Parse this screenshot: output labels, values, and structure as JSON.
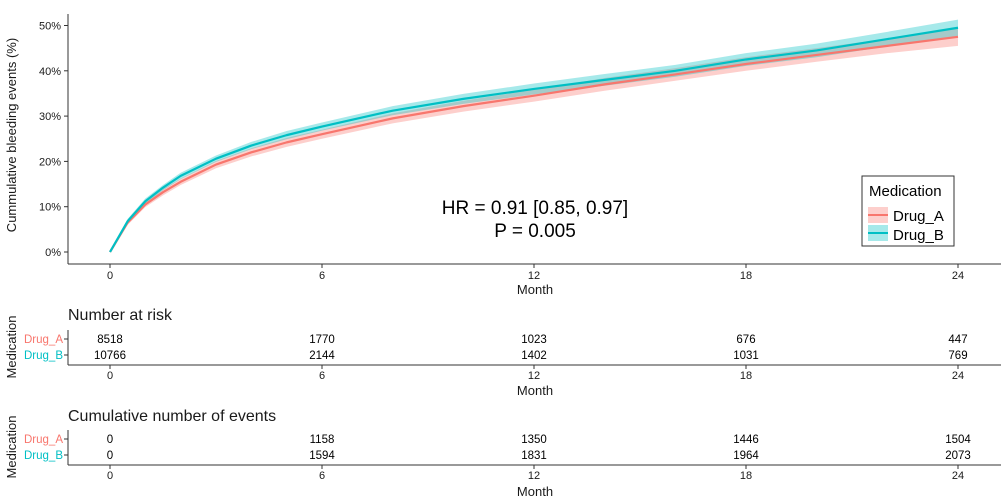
{
  "chart_data": [
    {
      "type": "line",
      "subtype": "cumulative-incidence",
      "ylabel": "Cummulative bleeding events (%)",
      "xlabel": "Month",
      "xlim": [
        0,
        24
      ],
      "ylim": [
        0,
        50
      ],
      "x_ticks": [
        0,
        6,
        12,
        18,
        24
      ],
      "y_ticks": [
        0,
        10,
        20,
        30,
        40,
        50
      ],
      "y_tick_labels": [
        "0%",
        "10%",
        "20%",
        "30%",
        "40%",
        "50%"
      ],
      "grid": false,
      "legend": {
        "title": "Medication",
        "position": "bottom-right",
        "entries": [
          "Drug_A",
          "Drug_B"
        ]
      },
      "annotation": {
        "line1": "HR = 0.91 [0.85, 0.97]",
        "line2": "P = 0.005"
      },
      "series": [
        {
          "name": "Drug_A",
          "color": "#F8766D",
          "x": [
            0,
            0.5,
            1,
            1.5,
            2,
            3,
            4,
            5,
            6,
            8,
            10,
            12,
            14,
            16,
            18,
            20,
            22,
            24
          ],
          "y": [
            0,
            6.5,
            10.5,
            13.2,
            15.5,
            19.3,
            22.0,
            24.2,
            26.0,
            29.5,
            32.2,
            34.5,
            37.0,
            39.2,
            41.5,
            43.5,
            45.5,
            47.5
          ],
          "lower": [
            0,
            6.0,
            9.9,
            12.5,
            14.8,
            18.5,
            21.1,
            23.2,
            25.0,
            28.4,
            31.0,
            33.2,
            35.6,
            37.8,
            40.0,
            42.0,
            43.9,
            45.5
          ],
          "upper": [
            0,
            7.0,
            11.1,
            13.9,
            16.2,
            20.1,
            22.9,
            25.2,
            27.0,
            30.6,
            33.4,
            35.8,
            38.4,
            40.6,
            43.0,
            45.0,
            47.1,
            49.5
          ]
        },
        {
          "name": "Drug_B",
          "color": "#00BFC4",
          "x": [
            0,
            0.5,
            1,
            1.5,
            2,
            3,
            4,
            5,
            6,
            8,
            10,
            12,
            14,
            16,
            18,
            20,
            22,
            24
          ],
          "y": [
            0,
            6.8,
            11.2,
            14.2,
            16.8,
            20.6,
            23.5,
            25.8,
            27.7,
            31.2,
            33.8,
            36.0,
            38.0,
            40.0,
            42.5,
            44.5,
            47.0,
            49.5
          ],
          "lower": [
            0,
            6.3,
            10.6,
            13.6,
            16.1,
            19.9,
            22.7,
            24.9,
            26.8,
            30.2,
            32.7,
            34.8,
            36.7,
            38.7,
            41.1,
            43.0,
            45.4,
            47.7
          ],
          "upper": [
            0,
            7.3,
            11.8,
            14.8,
            17.5,
            21.3,
            24.3,
            26.7,
            28.6,
            32.2,
            34.9,
            37.2,
            39.3,
            41.3,
            43.9,
            46.0,
            48.6,
            51.3
          ]
        }
      ]
    },
    {
      "type": "table",
      "title": "Number at risk",
      "ylabel": "Medication",
      "xlabel": "Month",
      "x_ticks": [
        0,
        6,
        12,
        18,
        24
      ],
      "rows": [
        {
          "name": "Drug_A",
          "color": "#F8766D",
          "values": [
            "8518",
            "1770",
            "1023",
            "676",
            "447"
          ]
        },
        {
          "name": "Drug_B",
          "color": "#00BFC4",
          "values": [
            "10766",
            "2144",
            "1402",
            "1031",
            "769"
          ]
        }
      ]
    },
    {
      "type": "table",
      "title": "Cumulative number of events",
      "ylabel": "Medication",
      "xlabel": "Month",
      "x_ticks": [
        0,
        6,
        12,
        18,
        24
      ],
      "rows": [
        {
          "name": "Drug_A",
          "color": "#F8766D",
          "values": [
            "0",
            "1158",
            "1350",
            "1446",
            "1504"
          ]
        },
        {
          "name": "Drug_B",
          "color": "#00BFC4",
          "values": [
            "0",
            "1594",
            "1831",
            "1964",
            "2073"
          ]
        }
      ]
    }
  ]
}
